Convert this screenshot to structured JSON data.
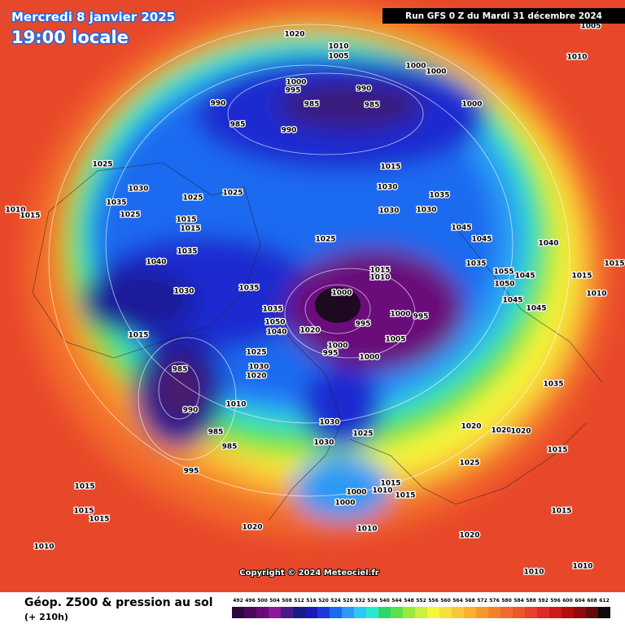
{
  "header": {
    "date": "Mercredi 8 janvier 2025",
    "time": "19:00 locale",
    "run": "Run GFS 0 Z du Mardi 31 décembre 2024"
  },
  "copyright": "Copyright © 2024 Meteociel.fr",
  "legend": {
    "title": "Géop. Z500 & pression au sol",
    "lead": "(+ 210h)",
    "levels": [
      492,
      496,
      500,
      504,
      508,
      512,
      516,
      520,
      524,
      528,
      532,
      536,
      540,
      544,
      548,
      552,
      556,
      560,
      564,
      568,
      572,
      576,
      580,
      584,
      588,
      592,
      596,
      600,
      604,
      608,
      612
    ],
    "colors": [
      "#2a0a3a",
      "#4a0a5a",
      "#6a0a7a",
      "#8a1a9a",
      "#4a1a8a",
      "#1a1a8a",
      "#1a1aba",
      "#1a3ae0",
      "#1a6af0",
      "#2a9af5",
      "#2ac8f5",
      "#2ae8d0",
      "#2ad86a",
      "#5ae04a",
      "#9ae83a",
      "#cdf03a",
      "#f5f53a",
      "#f8e03a",
      "#f9c83a",
      "#f9b02a",
      "#f8982a",
      "#f5802a",
      "#f26a2a",
      "#ee552a",
      "#e8402a",
      "#e02a2a",
      "#d01a1a",
      "#b80a0a",
      "#900a0a",
      "#600a0a",
      "#100a0a"
    ]
  },
  "isobar_labels": [
    1020,
    1010,
    1005,
    1005,
    1010,
    1000,
    1000,
    1000,
    995,
    990,
    990,
    985,
    985,
    1000,
    985,
    990,
    1025,
    1030,
    1025,
    1025,
    1015,
    1030,
    1035,
    1030,
    1030,
    1035,
    1010,
    1015,
    1025,
    1015,
    1015,
    1025,
    1045,
    1045,
    1040,
    1035,
    1040,
    1015,
    1010,
    1035,
    1055,
    1015,
    1035,
    1030,
    1000,
    1050,
    1045,
    1015,
    1010,
    1035,
    1050,
    1040,
    1045,
    1045,
    1000,
    995,
    995,
    1015,
    1020,
    1005,
    1000,
    995,
    1000,
    1025,
    1030,
    1020,
    1035,
    985,
    990,
    1010,
    1025,
    1030,
    1030,
    985,
    985,
    1020,
    1020,
    1020,
    1015,
    1025,
    995,
    1015,
    1015,
    1010,
    1015,
    1000,
    1000,
    1015,
    1015,
    1015,
    1020,
    1010,
    1020,
    1010,
    1010,
    1010
  ]
}
